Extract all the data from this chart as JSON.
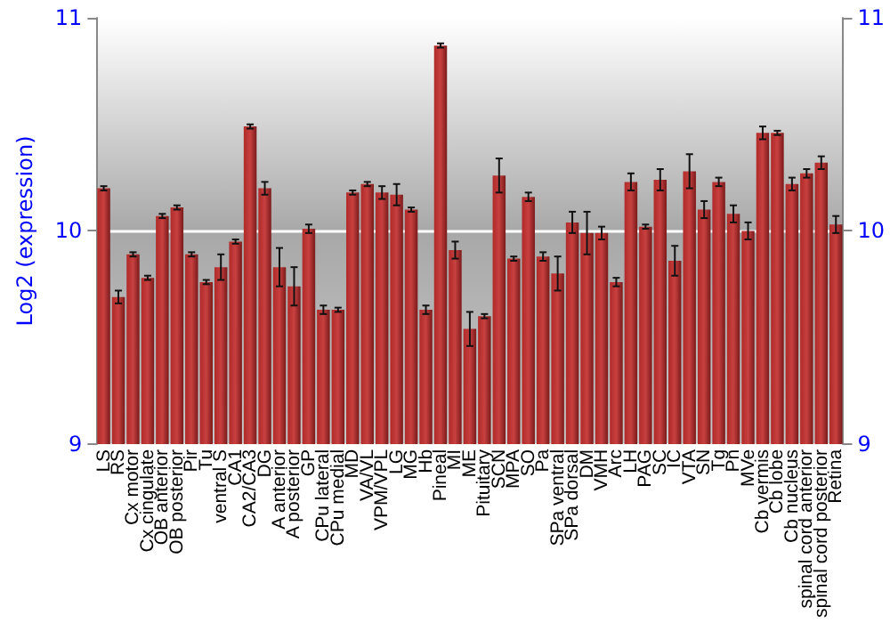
{
  "chart_data": {
    "type": "bar",
    "ylabel": "Log2 (expression)",
    "categories": [
      "LS",
      "RS",
      "Cx motor",
      "Cx cingulate",
      "OB anterior",
      "OB posterior",
      "Pir",
      "Tu",
      "ventral S",
      "CA1",
      "CA2/CA3",
      "DG",
      "A anterior",
      "A posterior",
      "GP",
      "CPu lateral",
      "CPu medial",
      "MD",
      "VA/VL",
      "VPM/VPL",
      "LG",
      "MG",
      "Hb",
      "Pineal",
      "MI",
      "ME",
      "Pituitary",
      "SCN",
      "MPA",
      "SO",
      "Pa",
      "SPa ventral",
      "SPa dorsal",
      "DM",
      "VMH",
      "Arc",
      "LH",
      "PAG",
      "SC",
      "IC",
      "VTA",
      "SN",
      "Tg",
      "Pn",
      "MVe",
      "Cb vermis",
      "Cb lobe",
      "Cb nucleus",
      "spinal cord anterior",
      "spinal cord posterior",
      "Retina"
    ],
    "values": [
      10.2,
      9.69,
      9.89,
      9.78,
      10.07,
      10.11,
      9.89,
      9.76,
      9.83,
      9.95,
      10.49,
      10.2,
      9.83,
      9.74,
      10.01,
      9.63,
      9.63,
      10.18,
      10.22,
      10.18,
      10.17,
      10.1,
      9.63,
      10.87,
      9.91,
      9.54,
      9.6,
      10.26,
      9.87,
      10.16,
      9.88,
      9.8,
      10.04,
      9.99,
      9.99,
      9.76,
      10.23,
      10.02,
      10.24,
      9.86,
      10.28,
      10.1,
      10.23,
      10.08,
      10.0,
      10.46,
      10.46,
      10.22,
      10.27,
      10.32,
      10.03
    ],
    "errors": [
      0.01,
      0.03,
      0.01,
      0.01,
      0.01,
      0.01,
      0.01,
      0.01,
      0.06,
      0.01,
      0.01,
      0.03,
      0.09,
      0.09,
      0.02,
      0.02,
      0.01,
      0.01,
      0.01,
      0.03,
      0.05,
      0.01,
      0.02,
      0.01,
      0.04,
      0.08,
      0.01,
      0.08,
      0.01,
      0.02,
      0.02,
      0.08,
      0.05,
      0.1,
      0.03,
      0.02,
      0.04,
      0.01,
      0.05,
      0.07,
      0.08,
      0.04,
      0.02,
      0.04,
      0.04,
      0.03,
      0.01,
      0.03,
      0.02,
      0.03,
      0.04
    ],
    "color": "#b02a2a",
    "ylim": [
      9,
      11
    ],
    "yticks": [
      9,
      10,
      11
    ],
    "y2lim": [
      9,
      11
    ],
    "y2ticks": [
      9,
      10,
      11
    ],
    "grid": "y"
  }
}
